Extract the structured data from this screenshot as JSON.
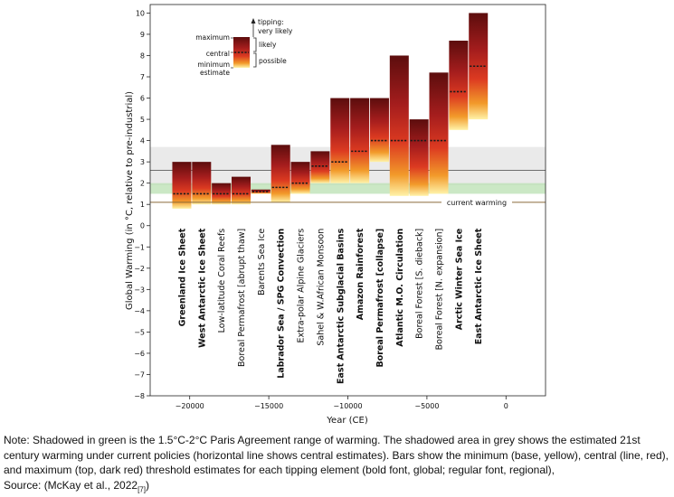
{
  "chart_data": {
    "type": "bar",
    "ylabel": "Global Warming (in °C, relative to pre-industrial)",
    "xlabel": "Year (CE)",
    "ylim": [
      -8,
      10.4
    ],
    "xlim": [
      -22500,
      2500
    ],
    "yticks": [
      10,
      9,
      8,
      7,
      6,
      5,
      4,
      3,
      2,
      1,
      0,
      -1,
      -2,
      -3,
      -4,
      -5,
      -6,
      -7,
      -8
    ],
    "ytick_labels": [
      "10",
      "9",
      "8",
      "7",
      "6",
      "5",
      "4",
      "3",
      "2",
      "1",
      "0",
      "−1",
      "−2",
      "−3",
      "−4",
      "−5",
      "−6",
      "−7",
      "−8"
    ],
    "xticks": [
      -20000,
      -15000,
      -10000,
      -5000,
      0
    ],
    "xtick_labels": [
      "−20000",
      "−15000",
      "−10000",
      "−5000",
      "0"
    ],
    "bars": [
      {
        "label": "Greenland Ice Sheet",
        "global": true,
        "min": 0.8,
        "central": 1.5,
        "max": 3.0
      },
      {
        "label": "West Antarctic Ice Sheet",
        "global": true,
        "min": 1.0,
        "central": 1.5,
        "max": 3.0
      },
      {
        "label": "Low-latitude Coral Reefs",
        "global": false,
        "min": 1.0,
        "central": 1.5,
        "max": 2.0
      },
      {
        "label": "Boreal Permafrost [abrupt thaw]",
        "global": false,
        "min": 1.0,
        "central": 1.5,
        "max": 2.3
      },
      {
        "label": "Barents Sea Ice",
        "global": false,
        "min": 1.5,
        "central": 1.6,
        "max": 1.7
      },
      {
        "label": "Labrador Sea / SPG Convection",
        "global": true,
        "min": 1.1,
        "central": 1.8,
        "max": 3.8
      },
      {
        "label": "Extra-polar Alpine Glaciers",
        "global": false,
        "min": 1.5,
        "central": 2.0,
        "max": 3.0
      },
      {
        "label": "Sahel & W.African Monsoon",
        "global": false,
        "min": 2.0,
        "central": 2.8,
        "max": 3.5
      },
      {
        "label": "East Antarctic Subglacial Basins",
        "global": true,
        "min": 2.0,
        "central": 3.0,
        "max": 6.0
      },
      {
        "label": "Amazon Rainforest",
        "global": true,
        "min": 2.0,
        "central": 3.5,
        "max": 6.0
      },
      {
        "label": "Boreal Permafrost [collapse]",
        "global": true,
        "min": 3.0,
        "central": 4.0,
        "max": 6.0
      },
      {
        "label": "Atlantic M.O. Circulation",
        "global": true,
        "min": 1.4,
        "central": 4.0,
        "max": 8.0
      },
      {
        "label": "Boreal Forest [S. dieback]",
        "global": false,
        "min": 1.4,
        "central": 4.0,
        "max": 5.0
      },
      {
        "label": "Boreal Forest [N. expansion]",
        "global": false,
        "min": 1.5,
        "central": 4.0,
        "max": 7.2
      },
      {
        "label": "Arctic Winter Sea Ice",
        "global": true,
        "min": 4.5,
        "central": 6.3,
        "max": 8.7
      },
      {
        "label": "East Antarctic Ice Sheet",
        "global": true,
        "min": 5.0,
        "central": 7.5,
        "max": 10.0
      }
    ],
    "grey_band": [
      1.9,
      3.7
    ],
    "grey_line": 2.6,
    "green_band": [
      1.5,
      2.0
    ],
    "current_warming": 1.1,
    "current_warming_label": "current warming",
    "legend": {
      "tipping": "tipping:",
      "very_likely": "very likely",
      "likely": "likely",
      "possible": "possible",
      "maximum": "maximum",
      "central": "central",
      "minimum": "minimum",
      "estimate": "estimate"
    }
  },
  "note": {
    "text": "Note: Shadowed in green is the 1.5°C-2°C Paris Agreement range of warming. The shadowed area in grey shows the estimated 21st century warming under current policies (horizontal line shows central estimates). Bars show the minimum (base, yellow), central (line, red), and maximum (top, dark red) threshold estimates for each tipping element (bold font, global; regular font, regional),",
    "source_prefix": "Source: (McKay et al., 2022",
    "source_ref": "[7]",
    "source_suffix": ")"
  }
}
